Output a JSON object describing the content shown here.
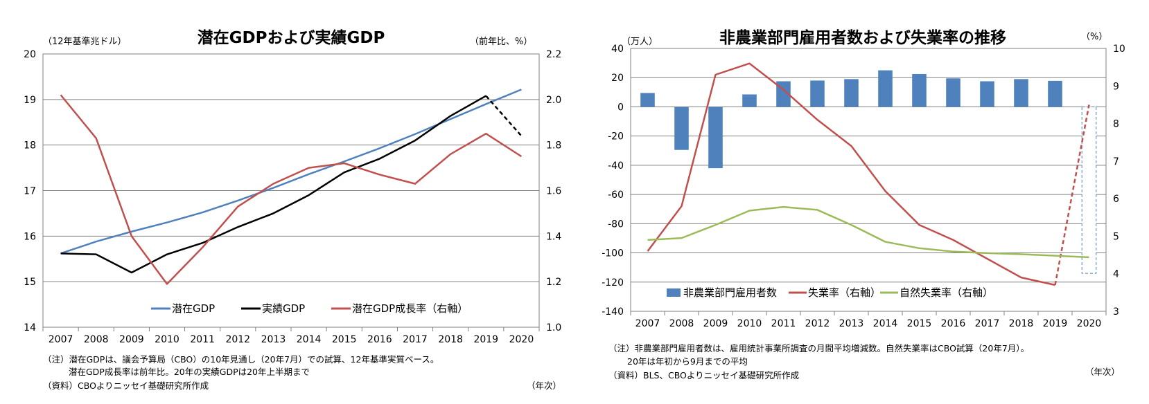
{
  "chart_data": [
    {
      "type": "line",
      "title": "潜在GDPおよび実績GDP",
      "left_unit": "（12年基準兆ドル）",
      "right_unit": "（前年比、%）",
      "xlabel": "（年次）",
      "categories": [
        "2007",
        "2008",
        "2009",
        "2010",
        "2011",
        "2012",
        "2013",
        "2014",
        "2015",
        "2016",
        "2017",
        "2018",
        "2019",
        "2020"
      ],
      "left_ticks": [
        "14",
        "15",
        "16",
        "17",
        "18",
        "19",
        "20"
      ],
      "right_ticks": [
        "1.0",
        "1.2",
        "1.4",
        "1.6",
        "1.8",
        "2.0",
        "2.2"
      ],
      "ylim_left": [
        14,
        20
      ],
      "ylim_right": [
        1.0,
        2.2
      ],
      "series": [
        {
          "name": "潜在GDP",
          "axis": "left",
          "color": "#4f81bd",
          "values": [
            15.62,
            15.88,
            16.1,
            16.3,
            16.52,
            16.78,
            17.06,
            17.36,
            17.64,
            17.93,
            18.24,
            18.57,
            18.9,
            19.22
          ]
        },
        {
          "name": "実績GDP",
          "axis": "left",
          "color": "#000000",
          "dashed_last": true,
          "values": [
            15.62,
            15.6,
            15.2,
            15.6,
            15.85,
            16.2,
            16.5,
            16.9,
            17.4,
            17.7,
            18.1,
            18.64,
            19.08,
            18.2
          ]
        },
        {
          "name": "潜在GDP成長率（右軸）",
          "axis": "right",
          "color": "#c0504d",
          "values": [
            2.02,
            1.83,
            1.4,
            1.19,
            1.35,
            1.53,
            1.63,
            1.7,
            1.72,
            1.67,
            1.63,
            1.76,
            1.85,
            1.75
          ]
        }
      ],
      "notes": [
        "（注）潜在GDPは、議会予算局（CBO）の10年見通し（20年7月）での試算、12年基準実質ベース。",
        "潜在GDP成長率は前年比。20年の実績GDPは20年上半期まで",
        "（資料）CBOよりニッセイ基礎研究所作成"
      ]
    },
    {
      "type": "bar+line",
      "title": "非農業部門雇用者数および失業率の推移",
      "left_unit": "（万人）",
      "right_unit": "（%）",
      "xlabel": "（年次）",
      "categories": [
        "2007",
        "2008",
        "2009",
        "2010",
        "2011",
        "2012",
        "2013",
        "2014",
        "2015",
        "2016",
        "2017",
        "2018",
        "2019",
        "2020"
      ],
      "left_ticks": [
        "-140",
        "-120",
        "-100",
        "-80",
        "-60",
        "-40",
        "-20",
        "0",
        "20",
        "40"
      ],
      "right_ticks": [
        "3",
        "4",
        "5",
        "6",
        "7",
        "8",
        "9",
        "10"
      ],
      "ylim_left": [
        -140,
        40
      ],
      "ylim_right": [
        3,
        10
      ],
      "series": [
        {
          "name": "非農業部門雇用者数",
          "kind": "bar",
          "axis": "left",
          "color": "#4f81bd",
          "values": [
            9.5,
            -29.5,
            -42,
            8.5,
            17.5,
            18,
            19,
            25,
            22.5,
            19.5,
            17.5,
            19,
            17.8,
            -114
          ]
        },
        {
          "name": "失業率（右軸）",
          "kind": "line",
          "axis": "right",
          "color": "#c0504d",
          "dashed_last": true,
          "values": [
            4.6,
            5.8,
            9.3,
            9.6,
            8.9,
            8.1,
            7.4,
            6.2,
            5.3,
            4.9,
            4.4,
            3.9,
            3.7,
            8.5
          ]
        },
        {
          "name": "自然失業率（右軸）",
          "kind": "line",
          "axis": "right",
          "color": "#9bbb59",
          "values": [
            4.9,
            4.95,
            5.3,
            5.68,
            5.78,
            5.7,
            5.3,
            4.85,
            4.68,
            4.59,
            4.55,
            4.52,
            4.48,
            4.44
          ]
        }
      ],
      "notes": [
        "（注）非農業部門雇用者数は、雇用統計事業所調査の月間平均増減数。自然失業率はCBO試算（20年7月）。",
        "20年は年初から9月までの平均",
        "（資料）BLS、CBOよりニッセイ基礎研究所作成"
      ]
    }
  ]
}
